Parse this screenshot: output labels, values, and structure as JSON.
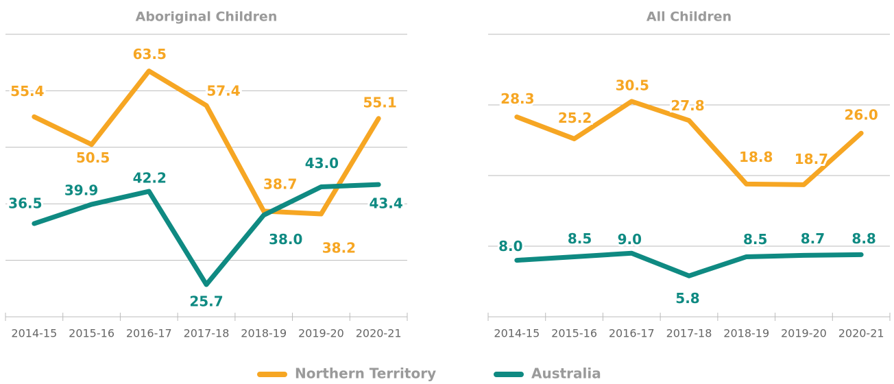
{
  "chart_data": [
    {
      "type": "line",
      "title": "Aboriginal Children",
      "categories": [
        "2014-15",
        "2015-16",
        "2016-17",
        "2017-18",
        "2018-19",
        "2019-20",
        "2020-21"
      ],
      "series": [
        {
          "name": "Northern Territory",
          "color": "#f6a623",
          "values": [
            55.4,
            50.5,
            63.5,
            57.4,
            38.7,
            38.2,
            55.1
          ],
          "value_labels": [
            "55.4",
            "50.5",
            "63.5",
            "57.4",
            "38.7",
            "38.2",
            "55.1"
          ]
        },
        {
          "name": "Australia",
          "color": "#0f8a82",
          "values": [
            36.5,
            39.9,
            42.2,
            25.7,
            38.0,
            43.0,
            43.4
          ],
          "value_labels": [
            "36.5",
            "39.9",
            "42.2",
            "25.7",
            "38.0",
            "43.0",
            "43.4"
          ]
        }
      ],
      "ylim": [
        20,
        70
      ],
      "yticks": [
        30,
        40,
        50,
        60,
        70
      ],
      "grid": true
    },
    {
      "type": "line",
      "title": "All Children",
      "categories": [
        "2014-15",
        "2015-16",
        "2016-17",
        "2017-18",
        "2018-19",
        "2019-20",
        "2020-21"
      ],
      "series": [
        {
          "color": "#f6a623",
          "values": [
            28.3,
            25.2,
            30.5,
            27.8,
            18.8,
            18.7,
            26.0
          ],
          "value_labels": [
            "28.3",
            "25.2",
            "30.5",
            "27.8",
            "18.8",
            "18.7",
            "26.0"
          ]
        },
        {
          "color": "#0f8a82",
          "values": [
            8.0,
            8.5,
            9.0,
            5.8,
            8.5,
            8.7,
            8.8
          ],
          "value_labels": [
            "8.0",
            "8.5",
            "9.0",
            "5.8",
            "8.5",
            "8.7",
            "8.8"
          ]
        }
      ],
      "ylim": [
        0,
        40
      ],
      "yticks": [
        10,
        20,
        30,
        40
      ],
      "grid": true
    }
  ]
}
